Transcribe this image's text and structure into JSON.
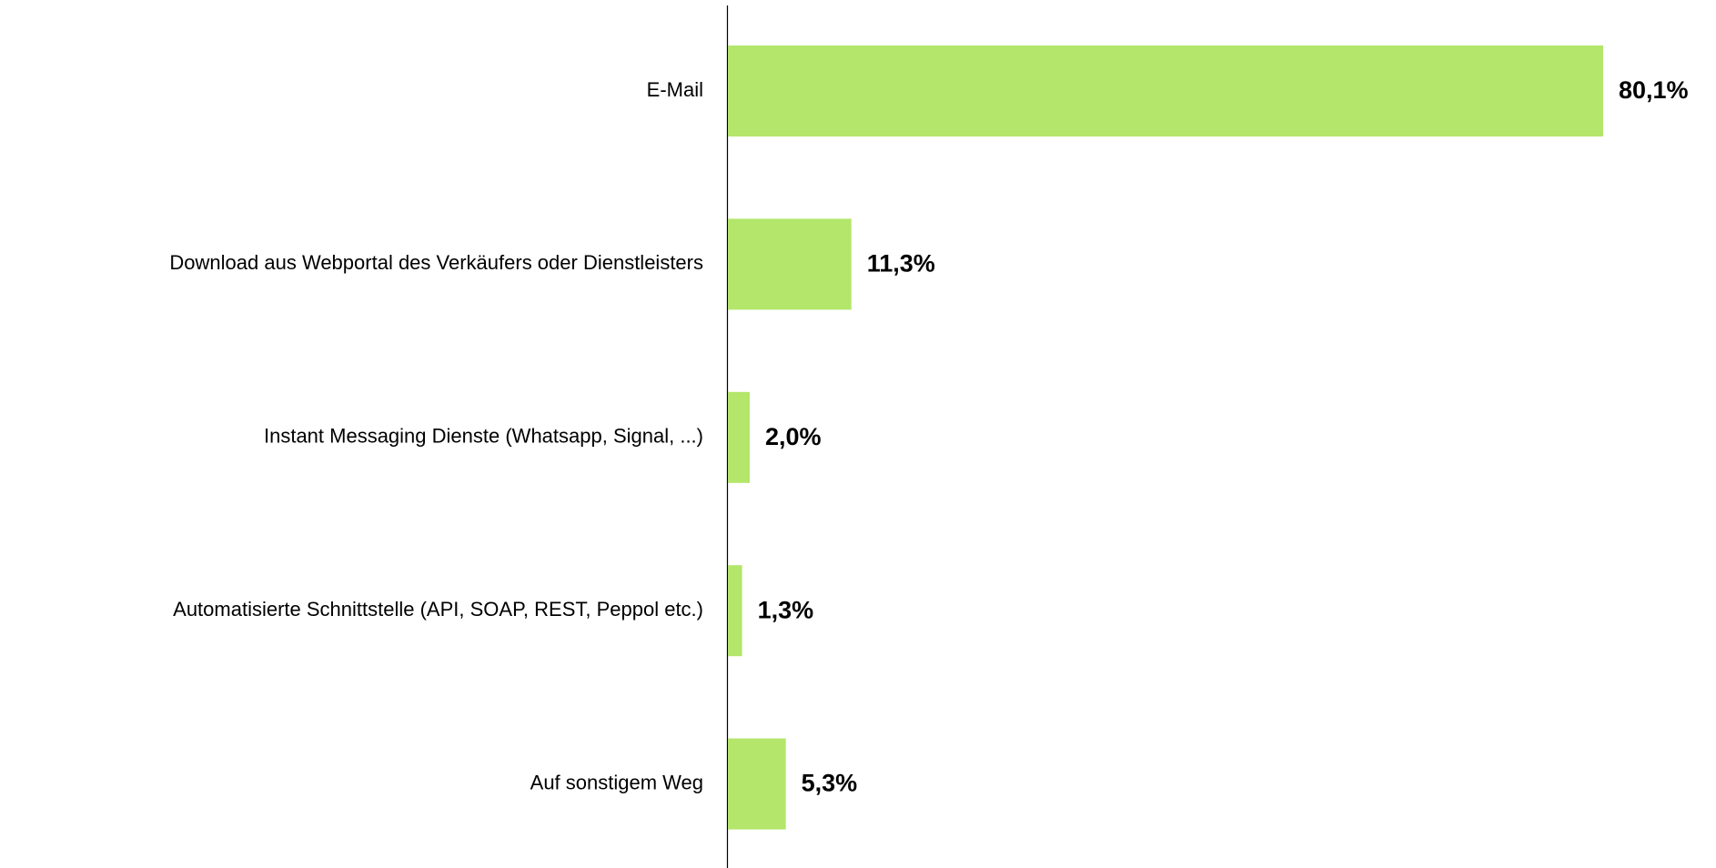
{
  "chart_data": {
    "type": "bar",
    "orientation": "horizontal",
    "categories": [
      "E-Mail",
      "Download aus Webportal des Verkäufers oder Dienstleisters",
      "Instant Messaging Dienste (Whatsapp, Signal, ...)",
      "Automatisierte Schnittstelle (API, SOAP, REST, Peppol etc.)",
      "Auf sonstigem Weg"
    ],
    "values": [
      80.1,
      11.3,
      2.0,
      1.3,
      5.3
    ],
    "value_labels": [
      "80,1%",
      "11,3%",
      "2,0%",
      "1,3%",
      "5,3%"
    ],
    "color": "#b3e66b"
  }
}
